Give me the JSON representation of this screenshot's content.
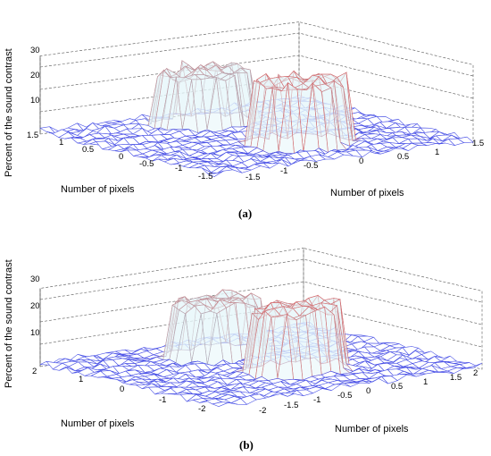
{
  "colors": {
    "low": "#3c3ce6",
    "mid": "#9fd6e6",
    "high": "#e05050",
    "grid": "#555555"
  },
  "chart_data": [
    {
      "type": "surface",
      "caption": "(a)",
      "zlabel": "Percent of the sound contrast",
      "xlabel": "Number of pixels",
      "ylabel": "Number of pixels",
      "zticks": [
        "10",
        "20",
        "30"
      ],
      "xticks": [
        "1.5",
        "1",
        "0.5",
        "0",
        "-0.5",
        "-1",
        "-1.5"
      ],
      "yticks": [
        "-1.5",
        "-1",
        "-0.5",
        "0",
        "0.5",
        "1",
        "1.5"
      ],
      "xlim": [
        -1.5,
        1.5
      ],
      "ylim": [
        -1.5,
        1.5
      ],
      "zlim": [
        0,
        35
      ],
      "peaks": [
        {
          "x_center": -0.9,
          "y_center": 0.0,
          "height": 26,
          "label": "left plateau"
        },
        {
          "x_center": 0.6,
          "y_center": 0.1,
          "height": 31,
          "label": "right plateau"
        }
      ],
      "background_level": 3
    },
    {
      "type": "surface",
      "caption": "(b)",
      "zlabel": "Percent of the sound contrast",
      "xlabel": "Number of pixels",
      "ylabel": "Number of pixels",
      "zticks": [
        "10",
        "20",
        "30"
      ],
      "xticks": [
        "2",
        "1",
        "0",
        "-1",
        "-2"
      ],
      "yticks": [
        "-2",
        "-1.5",
        "-1",
        "-0.5",
        "0",
        "0.5",
        "1",
        "1.5",
        "2"
      ],
      "xlim": [
        -2,
        2
      ],
      "ylim": [
        -2,
        2
      ],
      "zlim": [
        0,
        35
      ],
      "peaks": [
        {
          "x_center": -1.0,
          "y_center": 0.0,
          "height": 27,
          "label": "left plateau"
        },
        {
          "x_center": 0.6,
          "y_center": 0.1,
          "height": 31,
          "label": "right plateau"
        }
      ],
      "background_level": 3
    }
  ]
}
